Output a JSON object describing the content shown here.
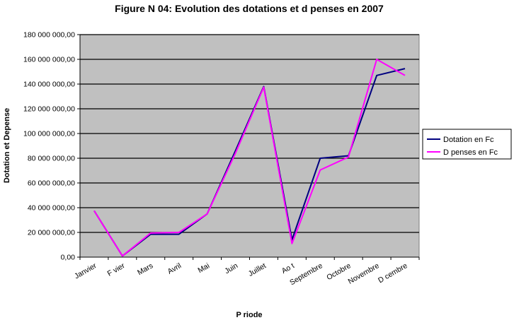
{
  "chart_data": {
    "type": "line",
    "title": "Figure N 04: Evolution des dotations et d  penses en 2007",
    "xlabel": "P  riode",
    "ylabel": "Dotation et Depense",
    "categories": [
      "Janvier",
      "F  vier",
      "Mars",
      "Avril",
      "Mai",
      "Juin",
      "Juillet",
      "Ao  t",
      "Septembre",
      "Octobre",
      "Novembre",
      "D  cembre"
    ],
    "y_ticks": [
      "0,00",
      "20 000 000,00",
      "40 000 000,00",
      "60 000 000,00",
      "80 000 000,00",
      "100 000 000,00",
      "120 000 000,00",
      "140 000 000,00",
      "160 000 000,00",
      "180 000 000,00"
    ],
    "ylim": [
      0,
      180000000
    ],
    "grid": true,
    "legend_position": "right",
    "series": [
      {
        "name": "Dotation en Fc",
        "color": "#000080",
        "values": [
          37500000,
          1000000,
          18500000,
          18500000,
          35000000,
          86000000,
          138000000,
          14000000,
          80000000,
          82000000,
          147000000,
          152500000
        ]
      },
      {
        "name": "D  penses en Fc",
        "color": "#ff00ff",
        "values": [
          37500000,
          1000000,
          19500000,
          20000000,
          35000000,
          84000000,
          137500000,
          11000000,
          70500000,
          81000000,
          160000000,
          147000000
        ]
      }
    ]
  }
}
